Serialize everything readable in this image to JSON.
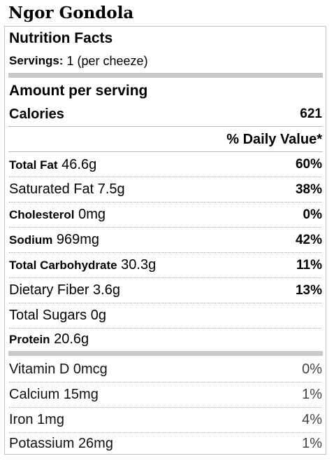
{
  "title": "Ngor Gondola",
  "panel_header": "Nutrition Facts",
  "servings": {
    "label": "Servings:",
    "value": "1 (per cheeze)"
  },
  "amount_per_serving": "Amount per serving",
  "calories": {
    "label": "Calories",
    "value": "621"
  },
  "daily_value_header": "% Daily Value*",
  "nutrients": [
    {
      "name": "Total Fat",
      "amount": "46.6g",
      "dv": "60%",
      "bold_name": true
    },
    {
      "name": "Saturated Fat",
      "amount": "7.5g",
      "dv": "38%",
      "bold_name": false
    },
    {
      "name": "Cholesterol",
      "amount": "0mg",
      "dv": "0%",
      "bold_name": true
    },
    {
      "name": "Sodium",
      "amount": "969mg",
      "dv": "42%",
      "bold_name": true
    },
    {
      "name": "Total Carbohydrate",
      "amount": "30.3g",
      "dv": "11%",
      "bold_name": true
    },
    {
      "name": "Dietary Fiber",
      "amount": "3.6g",
      "dv": "13%",
      "bold_name": false
    },
    {
      "name": "Total Sugars",
      "amount": "0g",
      "dv": "",
      "bold_name": false
    },
    {
      "name": "Protein",
      "amount": "20.6g",
      "dv": "",
      "bold_name": true
    }
  ],
  "vitamins": [
    {
      "name": "Vitamin D",
      "amount": "0mcg",
      "dv": "0%"
    },
    {
      "name": "Calcium",
      "amount": "15mg",
      "dv": "1%"
    },
    {
      "name": "Iron",
      "amount": "1mg",
      "dv": "4%"
    },
    {
      "name": "Potassium",
      "amount": "26mg",
      "dv": "1%"
    }
  ]
}
